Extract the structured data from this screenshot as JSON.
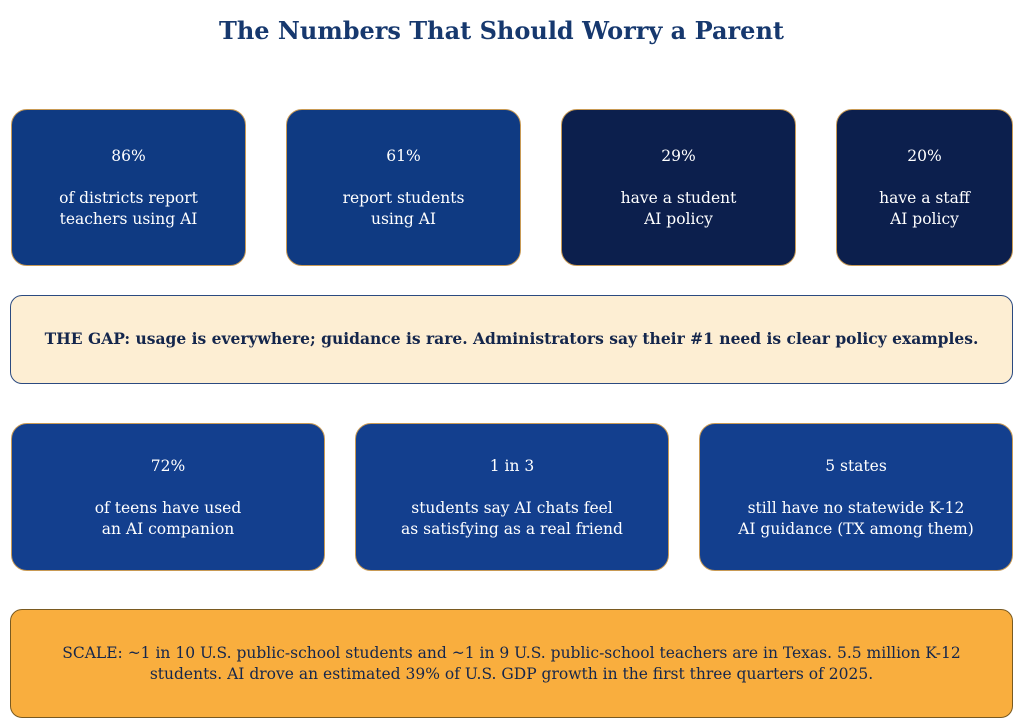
{
  "header": {
    "title": "The Numbers That Should Worry a Parent"
  },
  "top_cards": [
    {
      "stat": "86%",
      "lines": [
        "of districts report",
        "teachers using AI"
      ]
    },
    {
      "stat": "61%",
      "lines": [
        "report students",
        "using AI"
      ]
    },
    {
      "stat": "29%",
      "lines": [
        "have a student",
        "AI policy"
      ]
    },
    {
      "stat": "20%",
      "lines": [
        "have a staff",
        "AI policy"
      ]
    }
  ],
  "gap_note": {
    "text": "THE GAP: usage is everywhere; guidance is rare. Administrators say their #1 need is clear policy examples."
  },
  "bottom_cards": [
    {
      "stat": "72%",
      "lines": [
        "of teens have used",
        "an AI companion"
      ]
    },
    {
      "stat": "1 in 3",
      "lines": [
        "students say AI chats feel",
        "as satisfying as a real friend"
      ]
    },
    {
      "stat": "5 states",
      "lines": [
        "still have no statewide K-12",
        "AI guidance (TX among them)"
      ]
    }
  ],
  "scale_note": {
    "lines": [
      "SCALE: ~1 in 10 U.S. public-school students and ~1 in 9 U.S. public-school teachers are in Texas. 5.5 million K-12",
      "students. AI drove an estimated 39% of U.S. GDP growth in the first three quarters of 2025."
    ]
  }
}
